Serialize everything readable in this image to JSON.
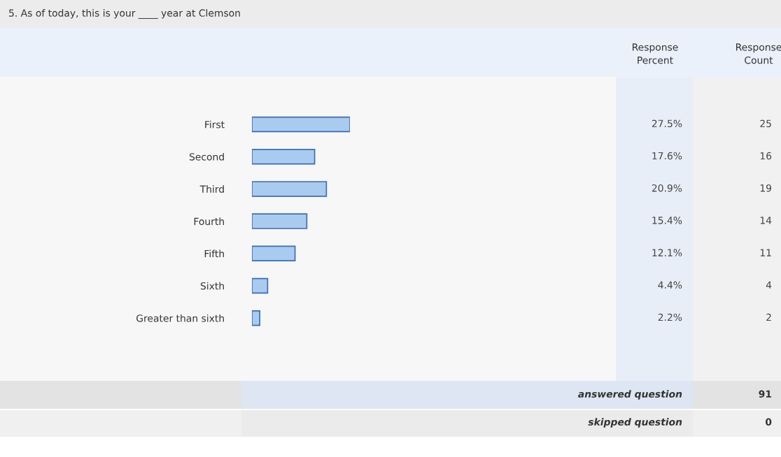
{
  "chart_data": {
    "type": "bar",
    "orientation": "horizontal",
    "title": "5. As of today, this is your ____ year at Clemson",
    "categories": [
      "First",
      "Second",
      "Third",
      "Fourth",
      "Fifth",
      "Sixth",
      "Greater than sixth"
    ],
    "values": [
      27.5,
      17.6,
      20.9,
      15.4,
      12.1,
      4.4,
      2.2
    ],
    "value_labels": [
      "27.5%",
      "17.6%",
      "20.9%",
      "15.4%",
      "12.1%",
      "4.4%",
      "2.2%"
    ],
    "color": "#a9cbef",
    "annotations": [
      "Response\nPercent",
      "Response\nCount",
      "answered question",
      "91",
      "skipped question",
      "0",
      "25",
      "16",
      "19",
      "14",
      "11",
      "4",
      "2"
    ]
  }
}
